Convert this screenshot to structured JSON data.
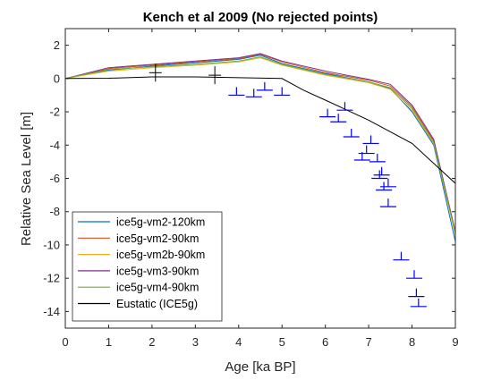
{
  "chart_data": {
    "type": "line",
    "title": "Kench et al 2009 (No rejected points)",
    "xlabel": "Age [ka BP]",
    "ylabel": "Relative Sea Level [m]",
    "xlim": [
      0,
      9
    ],
    "ylim": [
      -15,
      3
    ],
    "xticks": [
      "0",
      "1",
      "2",
      "3",
      "4",
      "5",
      "6",
      "7",
      "8",
      "9"
    ],
    "yticks": [
      "2",
      "0",
      "-2",
      "-4",
      "-6",
      "-8",
      "-10",
      "-12",
      "-14"
    ],
    "ytick_values": [
      2,
      0,
      -2,
      -4,
      -6,
      -8,
      -10,
      -12,
      -14
    ],
    "grid": false,
    "legend_position": "bottom-left",
    "series": [
      {
        "name": "ice5g-vm2-120km",
        "color": "#0072bd",
        "x": [
          0,
          1,
          2,
          3,
          4,
          4.5,
          5,
          6,
          7,
          7.5,
          8,
          8.5,
          9
        ],
        "y": [
          0,
          0.5,
          0.75,
          0.95,
          1.15,
          1.4,
          0.9,
          0.3,
          -0.2,
          -0.6,
          -2.0,
          -4.0,
          -9.8
        ]
      },
      {
        "name": "ice5g-vm2-90km",
        "color": "#d95319",
        "x": [
          0,
          1,
          2,
          3,
          4,
          4.5,
          5,
          6,
          7,
          7.5,
          8,
          8.5,
          9
        ],
        "y": [
          0,
          0.6,
          0.8,
          1.0,
          1.2,
          1.45,
          1.0,
          0.35,
          -0.1,
          -0.45,
          -1.7,
          -3.75,
          -9.3
        ]
      },
      {
        "name": "ice5g-vm2b-90km",
        "color": "#edb120",
        "x": [
          0,
          1,
          2,
          3,
          4,
          4.5,
          5,
          6,
          7,
          7.5,
          8,
          8.5,
          9
        ],
        "y": [
          0,
          0.45,
          0.65,
          0.8,
          1.0,
          1.25,
          0.8,
          0.2,
          -0.25,
          -0.65,
          -1.9,
          -3.9,
          -9.4
        ]
      },
      {
        "name": "ice5g-vm3-90km",
        "color": "#7e2f8e",
        "x": [
          0,
          1,
          2,
          3,
          4,
          4.5,
          5,
          6,
          7,
          7.5,
          8,
          8.5,
          9
        ],
        "y": [
          0,
          0.65,
          0.85,
          1.05,
          1.25,
          1.5,
          1.05,
          0.45,
          -0.05,
          -0.35,
          -1.6,
          -3.65,
          -9.2
        ]
      },
      {
        "name": "ice5g-vm4-90km",
        "color": "#77ac30",
        "x": [
          0,
          1,
          2,
          3,
          4,
          4.5,
          5,
          6,
          7,
          7.5,
          8,
          8.5,
          9
        ],
        "y": [
          0,
          0.55,
          0.7,
          0.85,
          1.05,
          1.3,
          0.85,
          0.25,
          -0.2,
          -0.55,
          -1.8,
          -3.85,
          -9.3
        ]
      },
      {
        "name": "Eustatic (ICE5g)",
        "color": "#000000",
        "x": [
          0,
          1,
          2,
          3,
          4,
          5,
          5.5,
          6,
          7,
          8,
          8.5,
          9
        ],
        "y": [
          0,
          0.02,
          0.1,
          0.1,
          0.05,
          0.0,
          -0.7,
          -1.3,
          -2.5,
          -3.9,
          -5.1,
          -6.3
        ]
      }
    ],
    "markers": {
      "blue_upper_limit": {
        "color": "#0000ff",
        "points": [
          [
            3.95,
            -1.0
          ],
          [
            4.35,
            -1.1
          ],
          [
            4.6,
            -0.7
          ],
          [
            5.0,
            -1.0
          ],
          [
            6.05,
            -2.3
          ],
          [
            6.3,
            -2.6
          ],
          [
            6.45,
            -1.9
          ],
          [
            6.6,
            -3.5
          ],
          [
            6.85,
            -4.9
          ],
          [
            6.95,
            -4.5
          ],
          [
            7.05,
            -3.9
          ],
          [
            7.2,
            -5.0
          ],
          [
            7.25,
            -6.0
          ],
          [
            7.3,
            -5.8
          ],
          [
            7.35,
            -6.7
          ],
          [
            7.45,
            -6.5
          ],
          [
            7.45,
            -7.7
          ],
          [
            7.75,
            -10.9
          ],
          [
            8.05,
            -12.0
          ],
          [
            8.1,
            -13.1
          ],
          [
            8.15,
            -13.7
          ]
        ]
      },
      "black_cross": {
        "color": "#000000",
        "points": [
          [
            2.08,
            0.35
          ],
          [
            3.45,
            0.2
          ]
        ]
      }
    }
  }
}
